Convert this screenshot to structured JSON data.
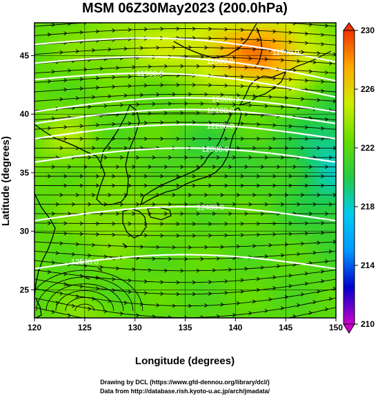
{
  "chart_data": {
    "type": "heatmap",
    "title": "MSM 06Z30May2023 (200.0hPa)",
    "xlabel": "Longitude (degrees)",
    "ylabel": "Latitude  (degrees)",
    "xlim": [
      120,
      150
    ],
    "ylim": [
      22.6,
      47.8
    ],
    "xticks": [
      120,
      125,
      130,
      135,
      140,
      145,
      150
    ],
    "yticks": [
      25,
      30,
      35,
      40,
      45
    ],
    "colorbar": {
      "min": 210,
      "max": 230,
      "ticks": [
        210,
        214,
        218,
        222,
        226,
        230
      ],
      "colors": [
        "#cc00cc",
        "#0000cc",
        "#0099ff",
        "#00ccee",
        "#22cc44",
        "#66dd00",
        "#ccee00",
        "#ffaa00",
        "#ee3300"
      ]
    },
    "contours": [
      {
        "label": "11700.0",
        "lon": 145.0
      },
      {
        "label": "11800.0",
        "lon": 138.5
      },
      {
        "label": "11900.0",
        "lon": 131.5
      },
      {
        "label": "12000.0",
        "lon": 139.0
      },
      {
        "label": "12100.0",
        "lon": 138.5
      },
      {
        "label": "12200.0",
        "lon": 138.5
      },
      {
        "label": "12300.0",
        "lon": 138.0
      },
      {
        "label": "12400.0",
        "lon": 137.5
      },
      {
        "label": "12500.0",
        "lon": 125.0
      }
    ],
    "grid": true
  },
  "credits": {
    "line1": "Drawing by DCL (https://www.gfd-dennou.org/library/dcl/)",
    "line2": "Data from http://database.rish.kyoto-u.ac.jp/arch/jmadata/"
  }
}
